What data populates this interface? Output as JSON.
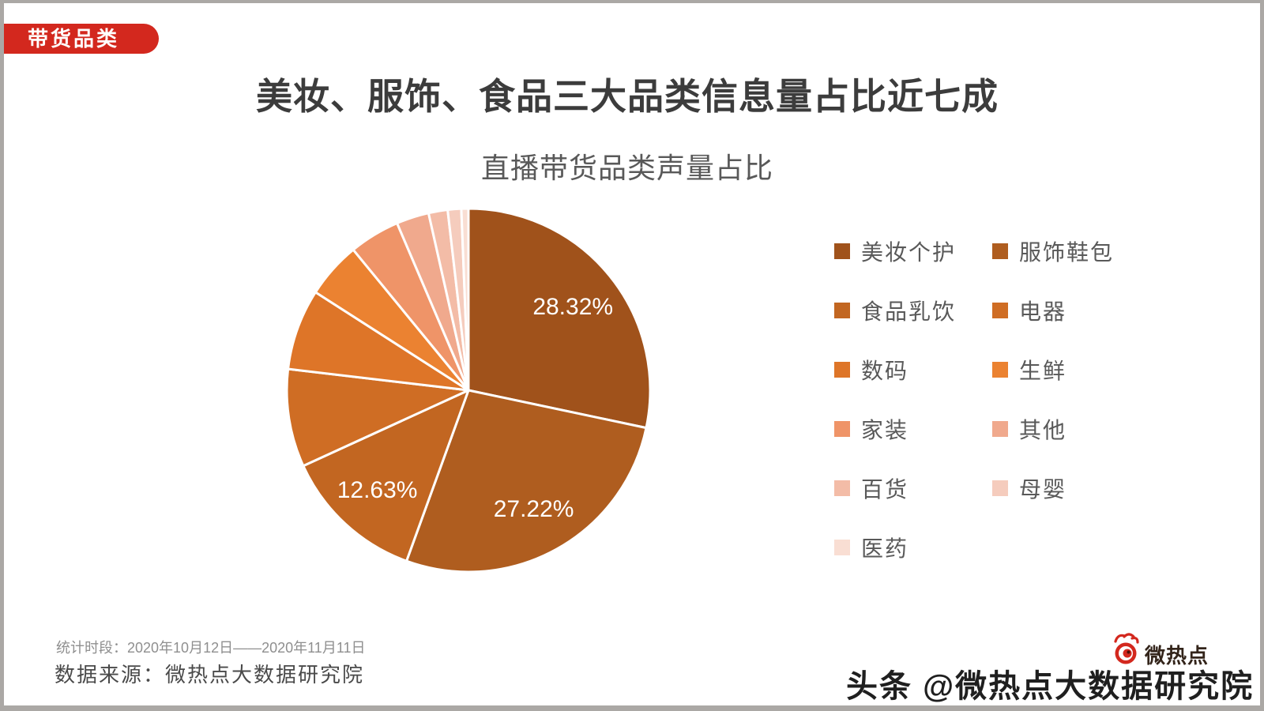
{
  "badge": {
    "label": "带货品类",
    "color": "#D3281E"
  },
  "title": "美妆、服饰、食品三大品类信息量占比近七成",
  "chart_data": {
    "type": "pie",
    "title": "直播带货品类声量占比",
    "start_angle": "12-o-clock",
    "direction": "clockwise",
    "legend_position": "right",
    "slices": [
      {
        "name": "美妆个护",
        "value": 28.32,
        "label": "28.32%",
        "color": "#A0521B"
      },
      {
        "name": "服饰鞋包",
        "value": 27.22,
        "label": "27.22%",
        "color": "#AF5D1F"
      },
      {
        "name": "食品乳饮",
        "value": 12.63,
        "label": "12.63%",
        "color": "#C26621"
      },
      {
        "name": "电器",
        "value": 8.7,
        "label": null,
        "color": "#CF6D24"
      },
      {
        "name": "数码",
        "value": 7.2,
        "label": null,
        "color": "#DE7528"
      },
      {
        "name": "生鲜",
        "value": 5.0,
        "label": null,
        "color": "#EB8231"
      },
      {
        "name": "家装",
        "value": 4.5,
        "label": null,
        "color": "#EF9468"
      },
      {
        "name": "其他",
        "value": 2.9,
        "label": null,
        "color": "#F0A98D"
      },
      {
        "name": "百货",
        "value": 1.7,
        "label": null,
        "color": "#F3BCA7"
      },
      {
        "name": "母婴",
        "value": 1.2,
        "label": null,
        "color": "#F5CCBD"
      },
      {
        "name": "医药",
        "value": 0.63,
        "label": null,
        "color": "#F9DED3"
      }
    ]
  },
  "footer": {
    "period": "统计时段：2020年10月12日——2020年11月11日",
    "source": "数据来源：微热点大数据研究院",
    "watermark_handle": "头条 @微热点大数据研究院",
    "logo_text": "微热点"
  }
}
